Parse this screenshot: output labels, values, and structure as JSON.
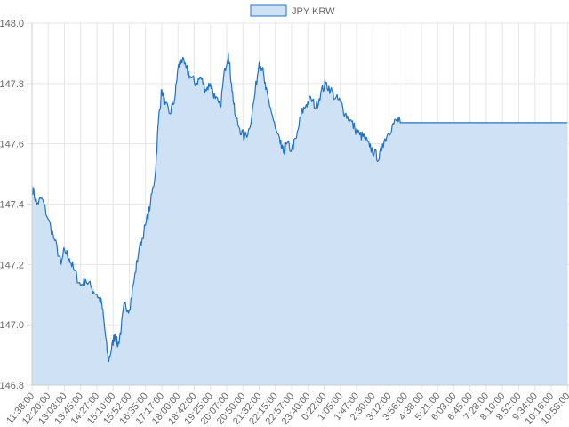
{
  "chart_data": {
    "type": "area",
    "legend": {
      "position": "top",
      "label": "JPY KRW"
    },
    "colors": {
      "line": "#1f72c8",
      "fill": "#cfe1f5",
      "grid": "#e6e6e6",
      "axis": "#cccccc",
      "text": "#666666"
    },
    "grid": true,
    "y_axis": {
      "range": [
        146.8,
        148.0
      ],
      "ticks": [
        146.8,
        147.0,
        147.2,
        147.4,
        147.6,
        147.8,
        148.0
      ],
      "tick_labels": [
        "146.8",
        "147.0",
        "147.2",
        "147.4",
        "147.6",
        "147.8",
        "148.0"
      ]
    },
    "x_axis": {
      "tick_labels": [
        "11:38:00",
        "12:20:00",
        "13:03:00",
        "13:45:00",
        "14:27:00",
        "15:10:00",
        "15:52:00",
        "16:35:00",
        "17:17:00",
        "18:00:00",
        "18:42:00",
        "19:25:00",
        "20:07:00",
        "20:50:00",
        "21:32:00",
        "22:15:00",
        "22:57:00",
        "23:40:00",
        "0:22:00",
        "1:05:00",
        "1:47:00",
        "2:30:00",
        "3:12:00",
        "3:56:00",
        "4:38:00",
        "5:21:00",
        "6:03:00",
        "6:45:00",
        "7:28:00",
        "8:10:00",
        "8:52:00",
        "9:34:00",
        "10:16:00",
        "10:58:00"
      ]
    },
    "series": [
      {
        "name": "JPY KRW",
        "points": [
          [
            0,
            147.46
          ],
          [
            0.3,
            147.4
          ],
          [
            0.6,
            147.42
          ],
          [
            1.0,
            147.35
          ],
          [
            1.4,
            147.28
          ],
          [
            1.8,
            147.2
          ],
          [
            2.0,
            147.25
          ],
          [
            2.3,
            147.22
          ],
          [
            2.6,
            147.18
          ],
          [
            3.0,
            147.13
          ],
          [
            3.3,
            147.15
          ],
          [
            3.7,
            147.12
          ],
          [
            4.0,
            147.1
          ],
          [
            4.3,
            147.07
          ],
          [
            4.5,
            146.98
          ],
          [
            4.7,
            146.88
          ],
          [
            4.9,
            146.92
          ],
          [
            5.1,
            146.97
          ],
          [
            5.3,
            146.93
          ],
          [
            5.5,
            146.99
          ],
          [
            5.7,
            147.07
          ],
          [
            6.0,
            147.05
          ],
          [
            6.3,
            147.15
          ],
          [
            6.6,
            147.25
          ],
          [
            7.0,
            147.33
          ],
          [
            7.3,
            147.4
          ],
          [
            7.6,
            147.5
          ],
          [
            7.8,
            147.68
          ],
          [
            8.0,
            147.78
          ],
          [
            8.2,
            147.73
          ],
          [
            8.5,
            147.7
          ],
          [
            8.8,
            147.75
          ],
          [
            9.0,
            147.85
          ],
          [
            9.2,
            147.88
          ],
          [
            9.5,
            147.85
          ],
          [
            9.8,
            147.82
          ],
          [
            10.1,
            147.8
          ],
          [
            10.4,
            147.82
          ],
          [
            10.7,
            147.78
          ],
          [
            11.0,
            147.8
          ],
          [
            11.3,
            147.75
          ],
          [
            11.6,
            147.72
          ],
          [
            11.9,
            147.85
          ],
          [
            12.1,
            147.9
          ],
          [
            12.3,
            147.8
          ],
          [
            12.5,
            147.7
          ],
          [
            12.8,
            147.65
          ],
          [
            13.1,
            147.62
          ],
          [
            13.4,
            147.65
          ],
          [
            13.7,
            147.75
          ],
          [
            14.0,
            147.87
          ],
          [
            14.2,
            147.85
          ],
          [
            14.4,
            147.78
          ],
          [
            14.7,
            147.72
          ],
          [
            15.0,
            147.65
          ],
          [
            15.3,
            147.6
          ],
          [
            15.5,
            147.57
          ],
          [
            15.7,
            147.6
          ],
          [
            16.0,
            147.58
          ],
          [
            16.3,
            147.62
          ],
          [
            16.6,
            147.7
          ],
          [
            16.9,
            147.73
          ],
          [
            17.2,
            147.75
          ],
          [
            17.5,
            147.72
          ],
          [
            17.8,
            147.77
          ],
          [
            18.1,
            147.8
          ],
          [
            18.4,
            147.78
          ],
          [
            18.7,
            147.75
          ],
          [
            19.0,
            147.74
          ],
          [
            19.3,
            147.7
          ],
          [
            19.6,
            147.68
          ],
          [
            19.9,
            147.65
          ],
          [
            20.2,
            147.63
          ],
          [
            20.5,
            147.62
          ],
          [
            20.8,
            147.59
          ],
          [
            21.1,
            147.57
          ],
          [
            21.4,
            147.55
          ],
          [
            21.6,
            147.6
          ],
          [
            21.9,
            147.63
          ],
          [
            22.2,
            147.66
          ],
          [
            22.5,
            147.68
          ],
          [
            22.7,
            147.67
          ]
        ],
        "flat_value": 147.67,
        "flat_through_index": 33
      }
    ]
  }
}
